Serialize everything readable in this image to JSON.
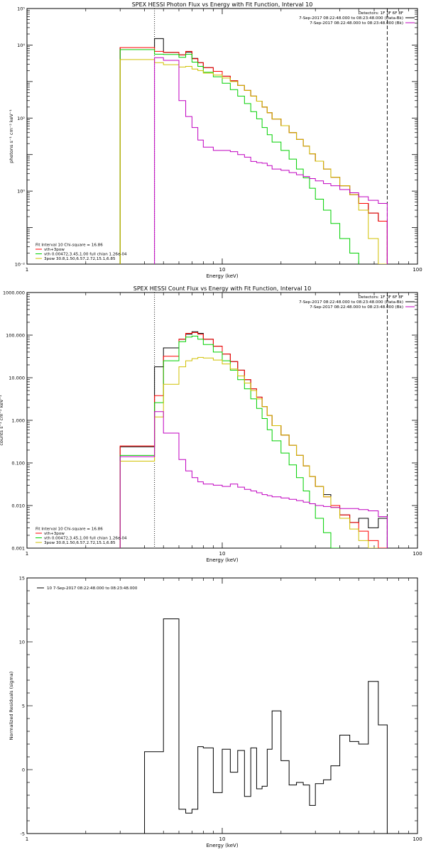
{
  "chart_data": [
    {
      "id": "photon",
      "type": "line",
      "step": true,
      "title": "SPEX HESSI Photon Flux vs Energy with Fit Function, Interval 10",
      "xlabel": "Energy (keV)",
      "ylabel": "photons s⁻¹ cm⁻² keV⁻¹",
      "xscale": "log",
      "yscale": "log",
      "xlim": [
        1,
        100
      ],
      "ylim": [
        0.01,
        100000
      ],
      "xticks": [
        {
          "v": 1,
          "t": "1"
        },
        {
          "v": 10,
          "t": "10"
        },
        {
          "v": 100,
          "t": "100"
        }
      ],
      "yticks": [
        {
          "v": 0.01,
          "t": "10⁻²"
        },
        {
          "v": 1,
          "t": "10⁰"
        },
        {
          "v": 100,
          "t": "10²"
        },
        {
          "v": 10000,
          "t": "10⁴"
        },
        {
          "v": 100000,
          "t": "10⁵"
        }
      ],
      "vlines": [
        {
          "x": 4.5,
          "style": "dotted"
        },
        {
          "x": 70,
          "style": "dashed"
        }
      ],
      "legend_tr": [
        "Detectors: 1F 3F 6F 8F",
        "7-Sep-2017 08:22:48.000 to 08:23:48.000 (Data-Bk)",
        "7-Sep-2017 08:22:48.000 to 08:23:48.000 (Bk)"
      ],
      "legend_tr_colors": [
        "#000000",
        "#c000c0"
      ],
      "legend_bl": [
        "Fit Interval 10    Chi-square = 16.86",
        "vth+3pow",
        "vth 0.00472,3.45,1.00  full chian 1.26e-04",
        "3pow 30.8,1.50,6.57,2.72,15.1,6.85"
      ],
      "legend_bl_colors": [
        "#ff0000",
        "#00d000",
        "#d0c000"
      ],
      "edges": [
        3,
        4.5,
        5,
        6,
        6.5,
        7,
        7.5,
        8,
        9,
        10,
        11,
        12,
        13,
        14,
        15,
        16,
        17,
        18,
        20,
        22,
        24,
        26,
        28,
        30,
        33,
        36,
        40,
        45,
        50,
        56,
        63,
        70,
        80
      ],
      "series": [
        {
          "name": "",
          "color": "#000000",
          "values": [
            8500,
            15000,
            6300,
            5400,
            6400,
            4300,
            3300,
            2400,
            1900,
            1400,
            1050,
            780,
            570,
            400,
            290,
            200,
            140,
            94,
            62,
            40,
            26,
            17,
            10.5,
            6.6,
            4,
            2.4,
            1.4,
            0.8,
            0.46,
            0.25,
            0.15,
            null
          ]
        },
        {
          "name": "",
          "color": "#ff0000",
          "values": [
            8500,
            6700,
            6300,
            5400,
            6700,
            4200,
            3300,
            2400,
            1900,
            1400,
            1050,
            780,
            570,
            400,
            290,
            200,
            140,
            94,
            62,
            40,
            26,
            17,
            10.5,
            6.6,
            4,
            2.4,
            1.4,
            0.8,
            0.46,
            0.25,
            0.15,
            null
          ]
        },
        {
          "name": "",
          "color": "#00d000",
          "values": [
            7500,
            5600,
            5500,
            4600,
            5600,
            3400,
            2600,
            1800,
            1350,
            900,
            600,
            400,
            250,
            150,
            95,
            55,
            35,
            22,
            13,
            7.5,
            4,
            2.3,
            1.2,
            0.6,
            0.3,
            0.13,
            0.05,
            0.02,
            null,
            null,
            null,
            null
          ]
        },
        {
          "name": "",
          "color": "#d0c000",
          "values": [
            4000,
            3300,
            2900,
            2500,
            2600,
            2200,
            2000,
            1700,
            1500,
            1250,
            1000,
            780,
            570,
            400,
            290,
            200,
            140,
            94,
            62,
            40,
            26,
            17,
            10.5,
            6.6,
            4,
            2.4,
            1.4,
            0.8,
            0.3,
            0.05,
            0.01,
            null
          ]
        },
        {
          "name": "",
          "color": "#c000c0",
          "values": [
            null,
            4500,
            3800,
            300,
            110,
            55,
            25,
            16,
            13,
            13,
            12,
            10,
            8.5,
            6.5,
            6,
            5.8,
            5,
            4,
            3.7,
            3.2,
            2.8,
            2.5,
            2.2,
            1.9,
            1.6,
            1.4,
            1.1,
            0.9,
            0.7,
            0.56,
            0.46,
            null
          ]
        }
      ]
    },
    {
      "id": "count",
      "type": "line",
      "step": true,
      "title": "SPEX HESSI Count Flux vs Energy with Fit Function, Interval 10",
      "xlabel": "Energy (keV)",
      "ylabel": "counts s⁻¹ cm⁻² keV⁻¹",
      "xscale": "log",
      "yscale": "log",
      "xlim": [
        1,
        100
      ],
      "ylim": [
        0.001,
        1000
      ],
      "xticks": [
        {
          "v": 1,
          "t": "1"
        },
        {
          "v": 10,
          "t": "10"
        },
        {
          "v": 100,
          "t": "100"
        }
      ],
      "yticks": [
        {
          "v": 0.001,
          "t": "0.001"
        },
        {
          "v": 0.01,
          "t": "0.010"
        },
        {
          "v": 0.1,
          "t": "0.100"
        },
        {
          "v": 1,
          "t": "1.000"
        },
        {
          "v": 10,
          "t": "10.000"
        },
        {
          "v": 100,
          "t": "100.000"
        },
        {
          "v": 1000,
          "t": "1000.000"
        }
      ],
      "vlines": [
        {
          "x": 4.5,
          "style": "dotted"
        },
        {
          "x": 70,
          "style": "dashed"
        }
      ],
      "legend_tr": [
        "Detectors: 1F 3F 6F 8F",
        "7-Sep-2017 08:22:48.000 to 08:23:48.000 (Data-Bk)",
        "7-Sep-2017 08:22:48.000 to 08:23:48.000 (Bk)"
      ],
      "legend_tr_colors": [
        "#000000",
        "#c000c0"
      ],
      "legend_bl": [
        "Fit Interval 10    Chi-square = 16.86",
        "vth+3pow",
        "vth 0.00472,3.45,1.00  full chian 1.26e-04",
        "3pow 30.8,1.50,6.57,2.72,15.1,6.85"
      ],
      "legend_bl_colors": [
        "#ff0000",
        "#00d000",
        "#d0c000"
      ],
      "edges": [
        3,
        4.5,
        5,
        6,
        6.5,
        7,
        7.5,
        8,
        9,
        10,
        11,
        12,
        13,
        14,
        15,
        16,
        17,
        18,
        20,
        22,
        24,
        26,
        28,
        30,
        33,
        36,
        40,
        45,
        50,
        56,
        63,
        70,
        80
      ],
      "series": [
        {
          "name": "",
          "color": "#000000",
          "values": [
            0.24,
            18,
            50,
            80,
            105,
            120,
            110,
            80,
            55,
            36,
            24,
            15,
            9,
            5.5,
            3.5,
            2.1,
            1.3,
            0.75,
            0.45,
            0.26,
            0.15,
            0.085,
            0.048,
            0.028,
            0.018,
            0.01,
            0.006,
            0.004,
            0.005,
            0.003,
            0.005,
            null
          ]
        },
        {
          "name": "",
          "color": "#ff0000",
          "values": [
            0.25,
            3.8,
            32,
            80,
            110,
            115,
            105,
            80,
            55,
            36,
            24,
            15,
            9,
            5.5,
            3.5,
            2.1,
            1.3,
            0.75,
            0.45,
            0.26,
            0.15,
            0.085,
            0.048,
            0.028,
            0.016,
            0.01,
            0.006,
            0.004,
            0.0025,
            0.0015,
            0.001,
            null
          ]
        },
        {
          "name": "",
          "color": "#00d000",
          "values": [
            0.15,
            2.6,
            25,
            70,
            90,
            95,
            80,
            60,
            40,
            25,
            15,
            9,
            5.5,
            3.2,
            1.9,
            1.1,
            0.6,
            0.33,
            0.17,
            0.09,
            0.045,
            0.022,
            0.011,
            0.005,
            0.0023,
            0.001,
            null,
            null,
            null,
            null,
            null,
            null
          ]
        },
        {
          "name": "",
          "color": "#d0c000",
          "values": [
            0.11,
            1.2,
            7,
            18,
            25,
            28,
            30,
            29,
            26,
            21,
            16,
            11,
            7.5,
            5,
            3.2,
            2.1,
            1.3,
            0.75,
            0.45,
            0.26,
            0.15,
            0.085,
            0.048,
            0.028,
            0.016,
            0.009,
            0.005,
            0.0028,
            0.0015,
            0.001,
            null,
            null
          ]
        },
        {
          "name": "",
          "color": "#c000c0",
          "values": [
            0.14,
            1.6,
            0.5,
            0.12,
            0.065,
            0.045,
            0.036,
            0.032,
            0.03,
            0.028,
            0.032,
            0.027,
            0.024,
            0.022,
            0.02,
            0.018,
            0.017,
            0.016,
            0.015,
            0.014,
            0.013,
            0.012,
            0.011,
            0.01,
            0.0095,
            0.009,
            0.0085,
            0.0085,
            0.008,
            0.0075,
            0.0055,
            null
          ]
        }
      ]
    },
    {
      "id": "resid",
      "type": "line",
      "step": true,
      "title": "",
      "xlabel": "Energy (keV)",
      "ylabel": "Normalized Residuals (sigma)",
      "xscale": "log",
      "yscale": "linear",
      "xlim": [
        1,
        100
      ],
      "ylim": [
        -5,
        15
      ],
      "xticks": [
        {
          "v": 1,
          "t": "1"
        },
        {
          "v": 10,
          "t": "10"
        },
        {
          "v": 100,
          "t": "100"
        }
      ],
      "yticks": [
        {
          "v": -5,
          "t": "-5"
        },
        {
          "v": 0,
          "t": "0"
        },
        {
          "v": 5,
          "t": "5"
        },
        {
          "v": 10,
          "t": "10"
        },
        {
          "v": 15,
          "t": "15"
        }
      ],
      "vlines": [],
      "legend_tr": [],
      "legend_tr_colors": [],
      "legend_bl": [],
      "legend_bl_colors": [],
      "legend_tl": "10  7-Sep-2017 08:22:48.000 to 08:23:48.000",
      "edges": [
        4,
        5,
        6,
        6.5,
        7,
        7.5,
        8,
        9,
        10,
        11,
        12,
        13,
        14,
        15,
        16,
        17,
        18,
        20,
        22,
        24,
        26,
        28,
        30,
        33,
        36,
        40,
        45,
        50,
        56,
        63,
        70,
        80
      ],
      "series": [
        {
          "name": "",
          "color": "#000000",
          "values": [
            1.4,
            11.8,
            -3.1,
            -3.4,
            -3.1,
            1.8,
            1.7,
            -1.8,
            1.6,
            -0.2,
            1.5,
            -2.1,
            1.7,
            -1.5,
            -1.3,
            1.6,
            4.6,
            0.7,
            -1.2,
            -1.0,
            -1.2,
            -2.8,
            -1.1,
            -0.8,
            0.3,
            2.7,
            2.2,
            2.0,
            6.9,
            3.5,
            -5.0
          ]
        }
      ]
    }
  ]
}
